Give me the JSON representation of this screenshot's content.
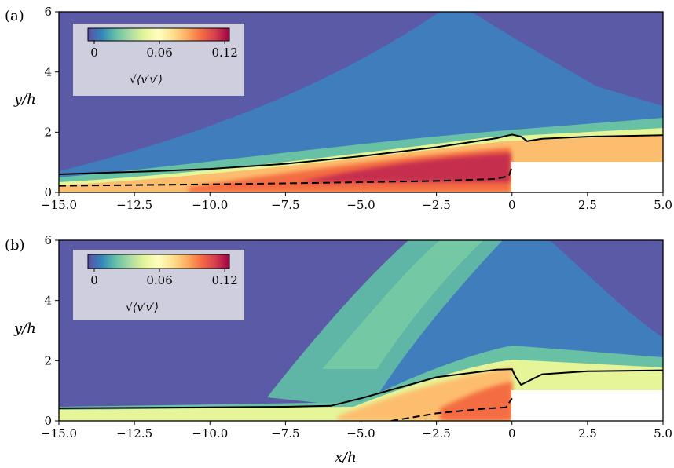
{
  "chart_data": [
    {
      "type": "heatmap",
      "panel_label": "(a)",
      "xlabel": "",
      "ylabel": "y/h",
      "xlim": [
        -15.0,
        5.0
      ],
      "ylim": [
        0,
        6
      ],
      "x_ticks": [
        "−15.0",
        "−12.5",
        "−10.0",
        "−7.5",
        "−5.0",
        "−2.5",
        "0",
        "2.5",
        "5.0"
      ],
      "y_ticks": [
        "0",
        "2",
        "4",
        "6"
      ],
      "colorbar": {
        "label": "√⟨v′v′⟩",
        "ticks": [
          "0",
          "0.06",
          "0.12"
        ],
        "range": [
          0,
          0.13
        ],
        "colormap": [
          "#5e4fa2",
          "#3288bd",
          "#66c2a5",
          "#abdda4",
          "#e6f598",
          "#ffffbf",
          "#fee08b",
          "#fdae61",
          "#f46d43",
          "#d53e4f",
          "#9e0142"
        ]
      },
      "step": {
        "x_start": 0,
        "height": 1.0
      },
      "solid_line": {
        "x": [
          -15,
          -12,
          -10,
          -7.5,
          -5,
          -2.5,
          -0.5,
          0,
          0.3,
          0.5,
          1,
          2.5,
          5
        ],
        "y": [
          0.6,
          0.7,
          0.78,
          0.95,
          1.2,
          1.5,
          1.8,
          1.92,
          1.85,
          1.7,
          1.78,
          1.85,
          1.9
        ]
      },
      "dashed_line": {
        "x": [
          -15,
          -10,
          -7.5,
          -5,
          -2.5,
          -0.5,
          -0.1,
          0
        ],
        "y": [
          0.22,
          0.27,
          0.3,
          0.34,
          0.38,
          0.45,
          0.55,
          0.85
        ]
      }
    },
    {
      "type": "heatmap",
      "panel_label": "(b)",
      "xlabel": "x/h",
      "ylabel": "y/h",
      "xlim": [
        -15.0,
        5.0
      ],
      "ylim": [
        0,
        6
      ],
      "x_ticks": [
        "−15.0",
        "−12.5",
        "−10.0",
        "−7.5",
        "−5.0",
        "−2.5",
        "0",
        "2.5",
        "5.0"
      ],
      "y_ticks": [
        "0",
        "2",
        "4",
        "6"
      ],
      "colorbar": {
        "label": "√⟨v′v′⟩",
        "ticks": [
          "0",
          "0.06",
          "0.12"
        ],
        "range": [
          0,
          0.13
        ],
        "colormap": [
          "#5e4fa2",
          "#3288bd",
          "#66c2a5",
          "#abdda4",
          "#e6f598",
          "#ffffbf",
          "#fee08b",
          "#fdae61",
          "#f46d43",
          "#d53e4f",
          "#9e0142"
        ]
      },
      "step": {
        "x_start": 0,
        "height": 1.0
      },
      "solid_line": {
        "x": [
          -15,
          -10,
          -7.5,
          -6,
          -5,
          -2.5,
          -0.5,
          0,
          0.1,
          0.3,
          1,
          2.5,
          5
        ],
        "y": [
          0.42,
          0.45,
          0.47,
          0.5,
          0.75,
          1.45,
          1.7,
          1.72,
          1.5,
          1.2,
          1.55,
          1.65,
          1.68
        ]
      },
      "dashed_line": {
        "x": [
          -4,
          -2.5,
          -1,
          -0.2,
          0
        ],
        "y": [
          0.0,
          0.25,
          0.4,
          0.45,
          0.75
        ]
      }
    }
  ]
}
